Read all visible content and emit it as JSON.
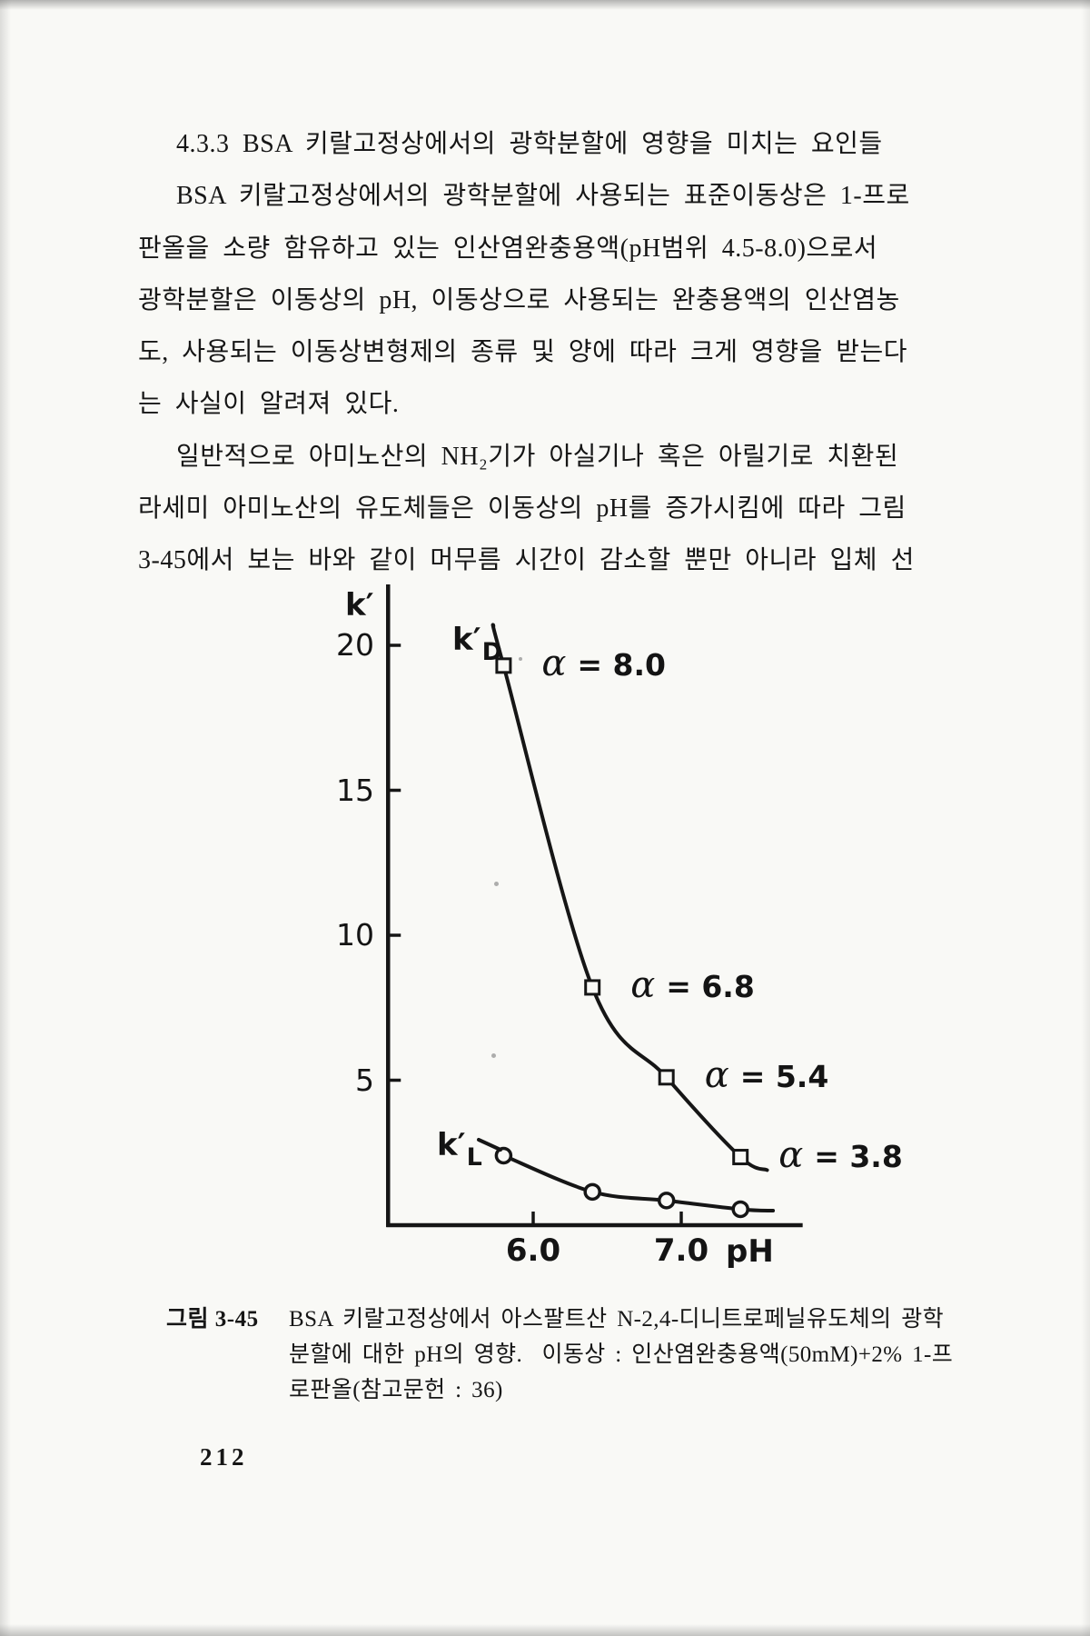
{
  "page_number": "212",
  "heading": "4.3.3 BSA 키랄고정상에서의 광학분할에 영향을 미치는 요인들",
  "body": {
    "para1": [
      "BSA 키랄고정상에서의 광학분할에 사용되는 표준이동상은 1-프로",
      "판올을 소량 함유하고 있는 인산염완충용액(pH범위 4.5-8.0)으로서",
      "광학분할은 이동상의 pH, 이동상으로 사용되는 완충용액의 인산염농",
      "도, 사용되는 이동상변형제의 종류 및 양에 따라 크게 영향을 받는다",
      "는 사실이 알려져 있다."
    ],
    "para2": [
      "일반적으로 아미노산의 NH₂기가 아실기나 혹은 아릴기로 치환된",
      "라세미 아미노산의 유도체들은 이동상의 pH를 증가시킴에 따라 그림",
      "3-45에서 보는 바와 같이 머무름 시간이 감소할 뿐만 아니라 입체 선"
    ]
  },
  "figure_caption": {
    "label": "그림 3-45",
    "lines": [
      "BSA 키랄고정상에서 아스팔트산 N-2,4-디니트로페닐유도체의 광학",
      "분할에 대한 pH의 영향.  이동상 : 인산염완충용액(50mM)+2% 1-프",
      "로판올(참고문헌 : 36)"
    ]
  },
  "chart_data": {
    "type": "scatter",
    "title": "",
    "xlabel": "pH",
    "ylabel": "k′",
    "x_range": [
      5.02,
      7.82
    ],
    "y_range": [
      0,
      22.1
    ],
    "grid": false,
    "x_ticks": [
      {
        "label": "6.0",
        "value": 6.0
      },
      {
        "label": "7.0",
        "value": 7.0
      }
    ],
    "y_ticks": [
      {
        "label": "20",
        "value": 20
      },
      {
        "label": "15",
        "value": 15
      },
      {
        "label": "10",
        "value": 10
      },
      {
        "label": "5",
        "value": 5
      }
    ],
    "series": [
      {
        "name_base": "k′",
        "name_sub": "D",
        "marker": "square",
        "x": [
          5.8,
          6.4,
          6.9,
          7.4
        ],
        "y": [
          19.3,
          8.2,
          5.1,
          2.35
        ],
        "alpha_labels": [
          {
            "sym": "α",
            "val": "= 8.0"
          },
          {
            "sym": "α",
            "val": "= 6.8"
          },
          {
            "sym": "α",
            "val": "= 5.4"
          },
          {
            "sym": "α",
            "val": "= 3.8"
          }
        ],
        "curve_start": {
          "x": 5.73,
          "y": 20.7
        },
        "curve_end": {
          "x": 7.58,
          "y": 1.9
        }
      },
      {
        "name_base": "k′",
        "name_sub": "L",
        "marker": "circle",
        "x": [
          5.8,
          6.4,
          6.9,
          7.4
        ],
        "y": [
          2.4,
          1.15,
          0.85,
          0.55
        ],
        "curve_end": {
          "x": 7.62,
          "y": 0.5
        }
      }
    ]
  }
}
